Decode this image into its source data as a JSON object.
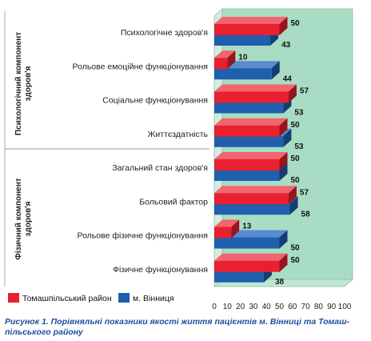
{
  "chart_data": {
    "type": "bar",
    "orientation": "horizontal",
    "style": "3d",
    "categories": [
      "Психологічне здоров'я",
      "Рольове емоційне функціонування",
      "Соціальне функціонування",
      "Життєздатність",
      "Загальний стан здоров'я",
      "Больовий фактор",
      "Рольове фізичне функціонування",
      "Фізичне функціонування"
    ],
    "groups": [
      {
        "label": "Психологічний компонент здоров'я",
        "categories": [
          0,
          1,
          2,
          3
        ]
      },
      {
        "label": "Фізичний компонент здоров'я",
        "categories": [
          4,
          5,
          6,
          7
        ]
      }
    ],
    "series": [
      {
        "name": "Томашпільський район",
        "color": "#e8202f",
        "values": [
          50,
          10,
          57,
          50,
          50,
          57,
          13,
          50
        ]
      },
      {
        "name": "м. Вінниця",
        "color": "#1f5fae",
        "values": [
          43,
          44,
          53,
          53,
          50,
          58,
          50,
          38
        ]
      }
    ],
    "xlim": [
      0,
      100
    ],
    "xticks": [
      0,
      10,
      20,
      30,
      40,
      50,
      60,
      70,
      80,
      90,
      100
    ],
    "legend_position": "bottom-left",
    "plot_background": "#a8dcc4",
    "grid": false
  },
  "caption": {
    "line1": "Рисунок 1.  Порівняльні показники якості життя пацієнтів м. Вінниці та Томаш-",
    "line2": "пільського району"
  }
}
